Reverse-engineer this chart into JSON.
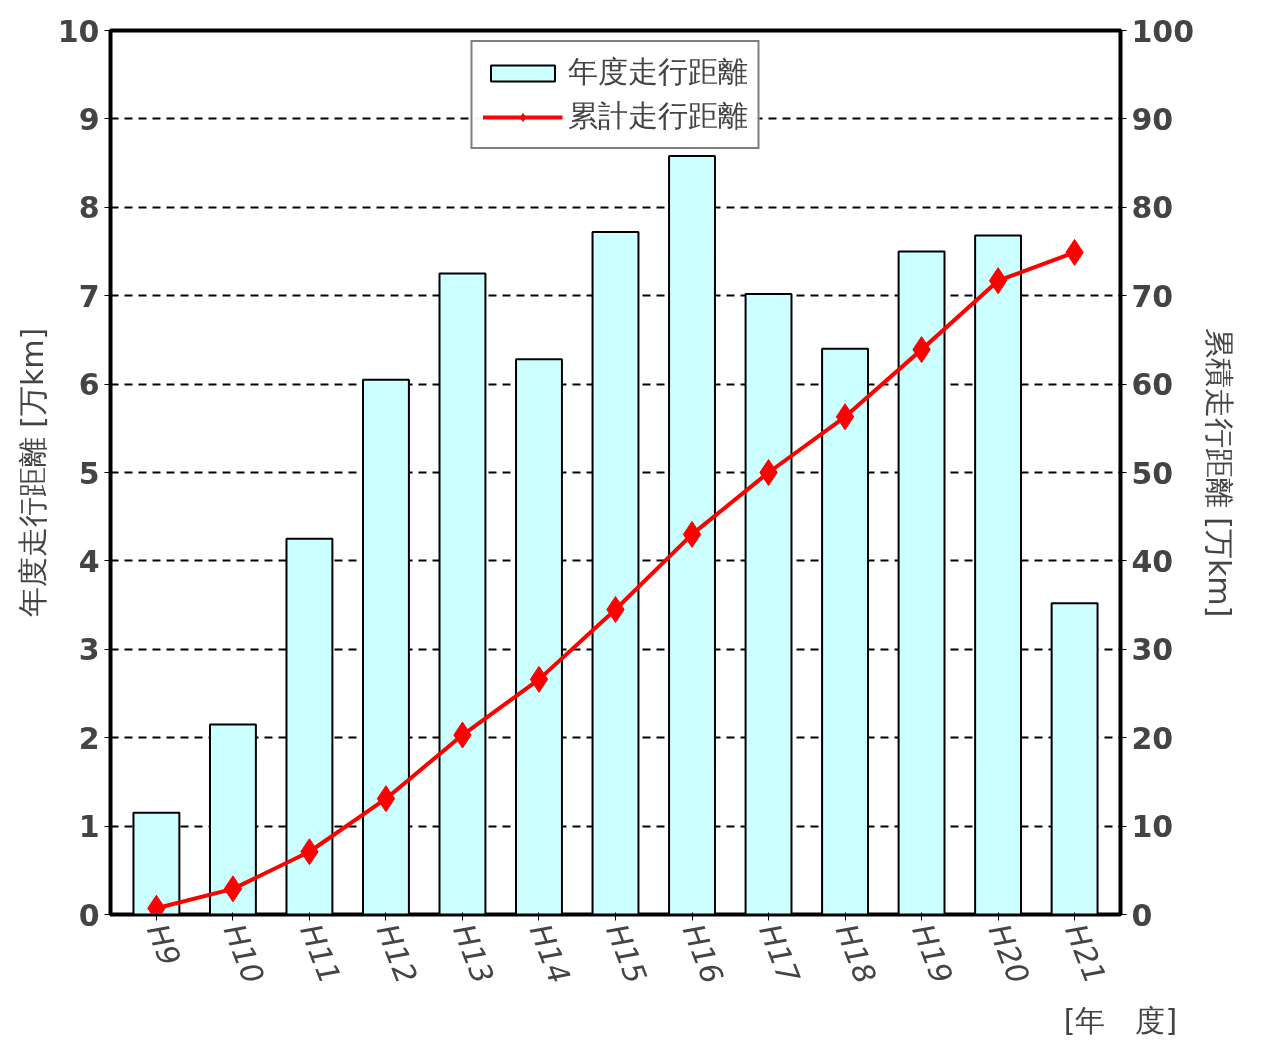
{
  "chart_data": {
    "type": "bar",
    "xlabel": "[年　度]",
    "ylabel": "年度走行距離 [万km]",
    "y2label": "累積走行距離 [万km]",
    "categories": [
      "H9",
      "H10",
      "H11",
      "H12",
      "H13",
      "H14",
      "H15",
      "H16",
      "H17",
      "H18",
      "H19",
      "H20",
      "H21"
    ],
    "series": [
      {
        "name": "年度走行距離",
        "color": "#ccffff",
        "values": [
          1.15,
          2.15,
          4.25,
          6.05,
          7.25,
          6.28,
          7.72,
          8.58,
          7.02,
          6.4,
          7.5,
          7.68,
          3.52
        ]
      },
      {
        "name": "累計走行距離",
        "type": "line",
        "axis": "y2",
        "marker": "diamond",
        "color": "#ff0000",
        "values": [
          0.7,
          2.9,
          7.1,
          13.1,
          20.3,
          26.6,
          34.5,
          43,
          50,
          56.3,
          63.9,
          71.7,
          74.9
        ]
      }
    ],
    "ylim": [
      0,
      10
    ],
    "yticks": [
      0,
      1,
      2,
      3,
      4,
      5,
      6,
      7,
      8,
      9,
      10
    ],
    "y2lim": [
      0,
      100
    ],
    "y2ticks": [
      0,
      10,
      20,
      30,
      40,
      50,
      60,
      70,
      80,
      90,
      100
    ],
    "grid": "y",
    "legend": "top"
  }
}
